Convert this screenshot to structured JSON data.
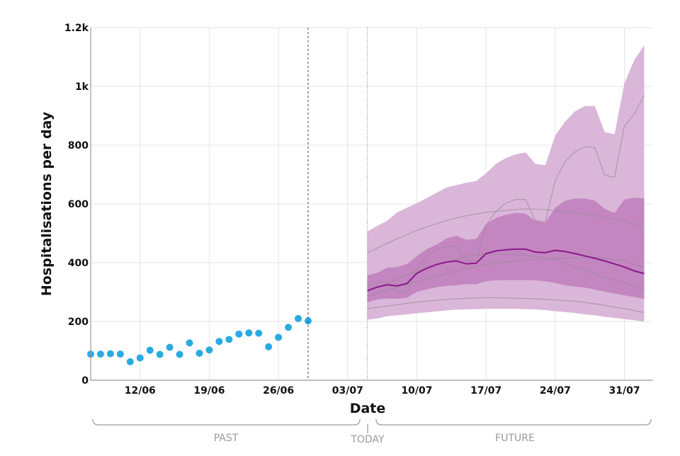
{
  "chart_data": {
    "type": "line",
    "xlabel": "Date",
    "ylabel": "Hospitalisations per day",
    "ylim": [
      0,
      1200
    ],
    "xlim": [
      "07/06",
      "03/08"
    ],
    "grid": true,
    "x_ticks": [
      "12/06",
      "19/06",
      "26/06",
      "03/07",
      "10/07",
      "17/07",
      "24/07",
      "31/07"
    ],
    "y_ticks": [
      {
        "value": 0,
        "label": "0"
      },
      {
        "value": 200,
        "label": "200"
      },
      {
        "value": 400,
        "label": "400"
      },
      {
        "value": 600,
        "label": "600"
      },
      {
        "value": 800,
        "label": "800"
      },
      {
        "value": 1000,
        "label": "1k"
      },
      {
        "value": 1200,
        "label": "1.2k"
      }
    ],
    "observed": {
      "color": "#29abe2",
      "x": [
        "07/06",
        "08/06",
        "09/06",
        "10/06",
        "11/06",
        "12/06",
        "13/06",
        "14/06",
        "15/06",
        "16/06",
        "17/06",
        "18/06",
        "19/06",
        "20/06",
        "21/06",
        "22/06",
        "23/06",
        "24/06",
        "25/06",
        "26/06",
        "27/06",
        "28/06",
        "29/06"
      ],
      "y": [
        89,
        89,
        90,
        89,
        63,
        76,
        102,
        88,
        112,
        88,
        127,
        92,
        103,
        132,
        139,
        157,
        161,
        160,
        114,
        146,
        180,
        210,
        202
      ]
    },
    "last_data_line": "29/06",
    "today_line": "05/07",
    "forecast": {
      "x": [
        "05/07",
        "06/07",
        "07/07",
        "08/07",
        "09/07",
        "10/07",
        "11/07",
        "12/07",
        "13/07",
        "14/07",
        "15/07",
        "16/07",
        "17/07",
        "18/07",
        "19/07",
        "20/07",
        "21/07",
        "22/07",
        "23/07",
        "24/07",
        "25/07",
        "26/07",
        "27/07",
        "28/07",
        "29/07",
        "30/07",
        "31/07",
        "01/08",
        "02/08"
      ],
      "median": {
        "color": "#8b1a89",
        "y": [
          305,
          317,
          325,
          321,
          329,
          364,
          381,
          394,
          402,
          406,
          396,
          398,
          431,
          440,
          444,
          446,
          446,
          436,
          434,
          442,
          438,
          431,
          423,
          415,
          406,
          396,
          385,
          372,
          363
        ]
      },
      "inner_band": {
        "color": "#c386c0",
        "upper": [
          357,
          365,
          383,
          385,
          396,
          422,
          446,
          462,
          482,
          492,
          478,
          480,
          531,
          552,
          563,
          569,
          567,
          543,
          536,
          587,
          611,
          618,
          618,
          611,
          583,
          569,
          615,
          621,
          619
        ],
        "lower": [
          265,
          275,
          278,
          277,
          281,
          301,
          309,
          317,
          321,
          323,
          327,
          327,
          337,
          340,
          341,
          341,
          341,
          340,
          337,
          331,
          323,
          319,
          315,
          309,
          301,
          295,
          289,
          283,
          277
        ]
      },
      "outer_band": {
        "color": "#dab6d8",
        "upper": [
          506,
          525,
          543,
          571,
          587,
          603,
          620,
          638,
          656,
          664,
          672,
          678,
          704,
          736,
          756,
          769,
          775,
          736,
          732,
          833,
          880,
          915,
          933,
          933,
          845,
          837,
          1010,
          1090,
          1140
        ],
        "lower": [
          206,
          210,
          218,
          221,
          224,
          228,
          231,
          234,
          238,
          240,
          241,
          242,
          243,
          243,
          243,
          243,
          242,
          241,
          239,
          235,
          232,
          229,
          224,
          221,
          216,
          212,
          208,
          204,
          200
        ]
      },
      "sample_trajectories": {
        "color": "#9a8a9a",
        "lines": [
          [
            434,
            450,
            466,
            481,
            496,
            510,
            522,
            533,
            543,
            552,
            560,
            566,
            571,
            575,
            578,
            581,
            583,
            582,
            580,
            577,
            574,
            571,
            566,
            560,
            554,
            548,
            543,
            532,
            520
          ],
          [
            243,
            248,
            252,
            257,
            262,
            266,
            269,
            272,
            275,
            277,
            279,
            280,
            281,
            281,
            280,
            279,
            278,
            277,
            275,
            273,
            271,
            269,
            265,
            260,
            255,
            249,
            244,
            237,
            230
          ],
          [
            321,
            333,
            335,
            299,
            299,
            381,
            422,
            446,
            456,
            456,
            407,
            407,
            527,
            575,
            603,
            615,
            615,
            543,
            539,
            680,
            744,
            777,
            795,
            792,
            698,
            690,
            865,
            906,
            970
          ],
          [
            301,
            316,
            330,
            345,
            359,
            373,
            383,
            393,
            403,
            412,
            422,
            426,
            430,
            429,
            428,
            427,
            426,
            421,
            415,
            410,
            398,
            385,
            373,
            362,
            350,
            341,
            333,
            317,
            309
          ],
          [
            286,
            296,
            306,
            317,
            327,
            337,
            346,
            354,
            363,
            372,
            381,
            387,
            393,
            398,
            402,
            406,
            408,
            410,
            413,
            415,
            416,
            417,
            418,
            418,
            415,
            410,
            406,
            394,
            383
          ]
        ]
      }
    },
    "annotations": {
      "past": "PAST",
      "today": "TODAY",
      "future": "FUTURE"
    }
  }
}
